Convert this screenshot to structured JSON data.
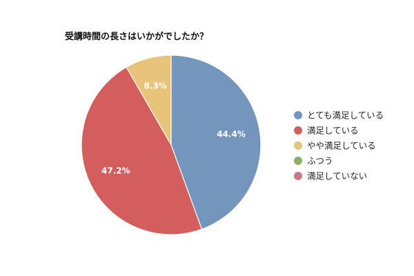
{
  "chart_data": {
    "type": "pie",
    "title": "受講時間の長さはいかがでしたか？",
    "categories": [
      "とても満足している",
      "満足している",
      "やや満足している",
      "ふつう",
      "満足していない"
    ],
    "values": [
      44.4,
      47.2,
      8.3,
      0,
      0
    ],
    "value_labels": [
      "44.4%",
      "47.2%",
      "8.3%",
      "",
      ""
    ],
    "colors": [
      "#7496bd",
      "#d35e5e",
      "#e8c47a",
      "#8faf62",
      "#c97886"
    ],
    "start_angle_deg": 0,
    "direction": "clockwise",
    "legend_position": "right"
  }
}
